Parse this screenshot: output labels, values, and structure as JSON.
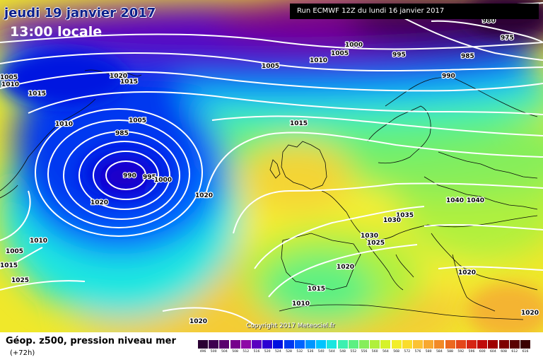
{
  "header": {
    "date": "jeudi 19 janvier 2017",
    "time": "13:00 locale",
    "run": "Run ECMWF 12Z du lundi 16 janvier 2017"
  },
  "copyright": "Copyright 2017 Meteociel.fr",
  "footer": {
    "title": "Géop. z500, pression niveau mer",
    "subtitle": "(+72h)"
  },
  "isobar_labels": [
    "980",
    "975",
    "985",
    "990",
    "995",
    "1000",
    "1005",
    "1010",
    "1005",
    "1005",
    "1010",
    "1015",
    "1020",
    "1015",
    "1010",
    "1005",
    "985",
    "990",
    "995",
    "1000",
    "1020",
    "1015",
    "1020",
    "1010",
    "1005",
    "1015",
    "1025",
    "1020",
    "1015",
    "1010",
    "1040",
    "1040",
    "1035",
    "1030",
    "1030",
    "1025",
    "1020",
    "1020",
    "1020"
  ],
  "legend": {
    "values": [
      496,
      500,
      504,
      508,
      512,
      516,
      520,
      524,
      528,
      532,
      536,
      540,
      544,
      548,
      552,
      556,
      560,
      564,
      568,
      572,
      576,
      580,
      584,
      588,
      592,
      596,
      600,
      604,
      608,
      612,
      616
    ],
    "colors": [
      "#2a0033",
      "#3f0050",
      "#5a006e",
      "#76008c",
      "#8e0aa6",
      "#5a00c0",
      "#2c00d2",
      "#0010e0",
      "#0038f0",
      "#0064ff",
      "#0096ff",
      "#00c4ff",
      "#1ae6e0",
      "#3cf0b0",
      "#5cf082",
      "#86ee5a",
      "#b0f03c",
      "#d6f22a",
      "#f2ee2a",
      "#fadc2c",
      "#fcc234",
      "#f8a830",
      "#f28a28",
      "#ec6820",
      "#e4461a",
      "#d62414",
      "#c00a0a",
      "#a00000",
      "#7e0000",
      "#5a0000",
      "#3a0000"
    ]
  }
}
